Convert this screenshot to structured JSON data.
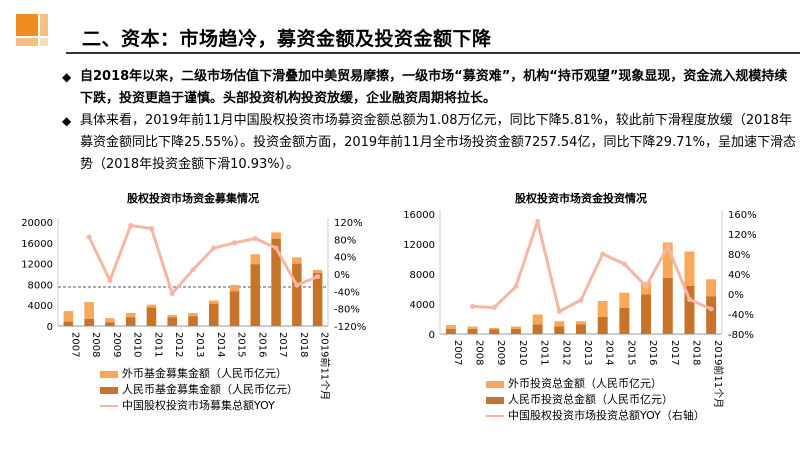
{
  "header": {
    "title": "二、资本：市场趋冷，募资金额及投资金额下降"
  },
  "bullets": [
    {
      "mark": "◆",
      "bold": true,
      "text": "自2018年以来，二级市场估值下滑叠加中美贸易摩擦，一级市场“募资难”，机构“持币观望”现象显现，资金流入规模持续下跌，投资更趋于谨慎。头部投资机构投资放缓，企业融资周期将拉长。"
    },
    {
      "mark": "◆",
      "bold": false,
      "text": "具体来看，2019年前11月中国股权投资市场募资金额总额为1.08万亿元，同比下降5.81%，较此前下滑程度放缓（2018年募资金额同比下降25.55%）。投资金额方面，2019年前11月全市场投资金额7257.54亿，同比下降29.71%，呈加速下滑态势（2018年投资金额下滑10.93%）。"
    }
  ],
  "colors": {
    "foreign": "#f7a85a",
    "rmb": "#c8732a",
    "yoy": "#f5b7a3",
    "accent": "#f08c1e"
  },
  "chart_data": [
    {
      "type": "bar",
      "stacked": true,
      "title": "股权投资市场资金募集情况",
      "categories": [
        "2007",
        "2008",
        "2009",
        "2010",
        "2011",
        "2012",
        "2013",
        "2014",
        "2015",
        "2016",
        "2017",
        "2018",
        "2019前11个月"
      ],
      "series": [
        {
          "name": "人民币基金募集金额（人民币亿元）",
          "values": [
            900,
            1400,
            700,
            1700,
            3600,
            1700,
            1900,
            4300,
            6700,
            11900,
            16800,
            12000,
            10200
          ]
        },
        {
          "name": "外币基金募集金额（人民币亿元）",
          "values": [
            2000,
            3200,
            800,
            800,
            500,
            400,
            600,
            600,
            1200,
            1900,
            1200,
            1200,
            600
          ]
        },
        {
          "name": "中国股权投资市场募集总额YOY",
          "axis": "right",
          "values": [
            null,
            85,
            -15,
            112,
            105,
            -45,
            10,
            60,
            72,
            82,
            60,
            -26,
            -6
          ]
        }
      ],
      "y_left": {
        "min": 0,
        "max": 20000,
        "ticks": [
          0,
          4000,
          8000,
          12000,
          16000,
          20000
        ]
      },
      "y_right": {
        "min": -120,
        "max": 120,
        "ticks": [
          "-120%",
          "-80%",
          "-40%",
          "0%",
          "40%",
          "80%",
          "120%"
        ]
      },
      "reference_line": {
        "axis": "right",
        "value": -30
      },
      "legend": [
        "外币基金募集金额（人民币亿元）",
        "人民币基金募集金额（人民币亿元）",
        "中国股权投资市场募集总额YOY"
      ]
    },
    {
      "type": "bar",
      "stacked": true,
      "title": "股权投资市场资金投资情况",
      "categories": [
        "2007",
        "2008",
        "2009",
        "2010",
        "2011",
        "2012",
        "2013",
        "2014",
        "2015",
        "2016",
        "2017",
        "2018",
        "2019前11个月"
      ],
      "series": [
        {
          "name": "人民币投资总金额（人民币亿元）",
          "values": [
            700,
            700,
            600,
            700,
            1300,
            1000,
            1300,
            2300,
            3500,
            5300,
            7500,
            6400,
            5000
          ]
        },
        {
          "name": "外币投资总金额（人民币亿元）",
          "values": [
            500,
            300,
            200,
            300,
            1300,
            700,
            400,
            2100,
            2000,
            1600,
            4700,
            4600,
            2300
          ]
        },
        {
          "name": "中国股权投资市场投资总额YOY（右轴）",
          "axis": "right",
          "values": [
            null,
            -25,
            -27,
            15,
            145,
            -35,
            -12,
            80,
            60,
            15,
            95,
            -11,
            -30
          ]
        }
      ],
      "y_left": {
        "min": 0,
        "max": 16000,
        "ticks": [
          0,
          4000,
          8000,
          12000,
          16000
        ]
      },
      "y_right": {
        "min": -80,
        "max": 160,
        "ticks": [
          "-80%",
          "-40%",
          "0%",
          "40%",
          "80%",
          "120%",
          "160%"
        ]
      },
      "legend": [
        "外币投资总金额（人民币亿元）",
        "人民币投资总金额（人民币亿元）",
        "中国股权投资市场投资总额YOY（右轴）"
      ]
    }
  ]
}
